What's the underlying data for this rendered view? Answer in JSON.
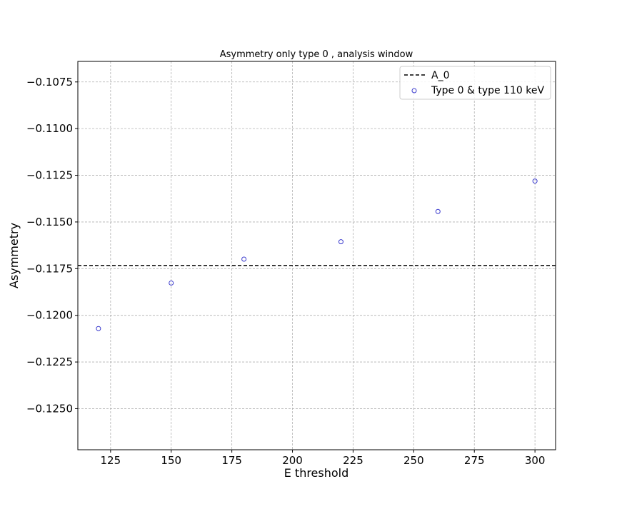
{
  "chart_data": {
    "type": "scatter",
    "title": "Asymmetry only type 0 , analysis window",
    "xlabel": "E threshold",
    "ylabel": "Asymmetry",
    "xlim": [
      111.5,
      308.5
    ],
    "ylim": [
      -0.1272,
      -0.1064
    ],
    "xticks": [
      125,
      150,
      175,
      200,
      225,
      250,
      275,
      300
    ],
    "xtick_labels": [
      "125",
      "150",
      "175",
      "200",
      "225",
      "250",
      "275",
      "300"
    ],
    "yticks": [
      -0.1075,
      -0.11,
      -0.1125,
      -0.115,
      -0.1175,
      -0.12,
      -0.1225,
      -0.125
    ],
    "ytick_labels": [
      "−0.1075",
      "−0.1100",
      "−0.1125",
      "−0.1150",
      "−0.1175",
      "−0.1200",
      "−0.1225",
      "−0.1250"
    ],
    "grid": true,
    "legend_position": "top-right",
    "hline": {
      "name": "A_0",
      "y": -0.11733,
      "color": "#000000",
      "style": "dashed"
    },
    "series": [
      {
        "name": "Type 0 & type 110 keV",
        "marker": "open-circle",
        "color": "#3a3acd",
        "x": [
          120,
          150,
          180,
          220,
          260,
          300
        ],
        "y": [
          -0.12071,
          -0.11827,
          -0.11699,
          -0.11606,
          -0.11444,
          -0.11281
        ]
      }
    ]
  }
}
